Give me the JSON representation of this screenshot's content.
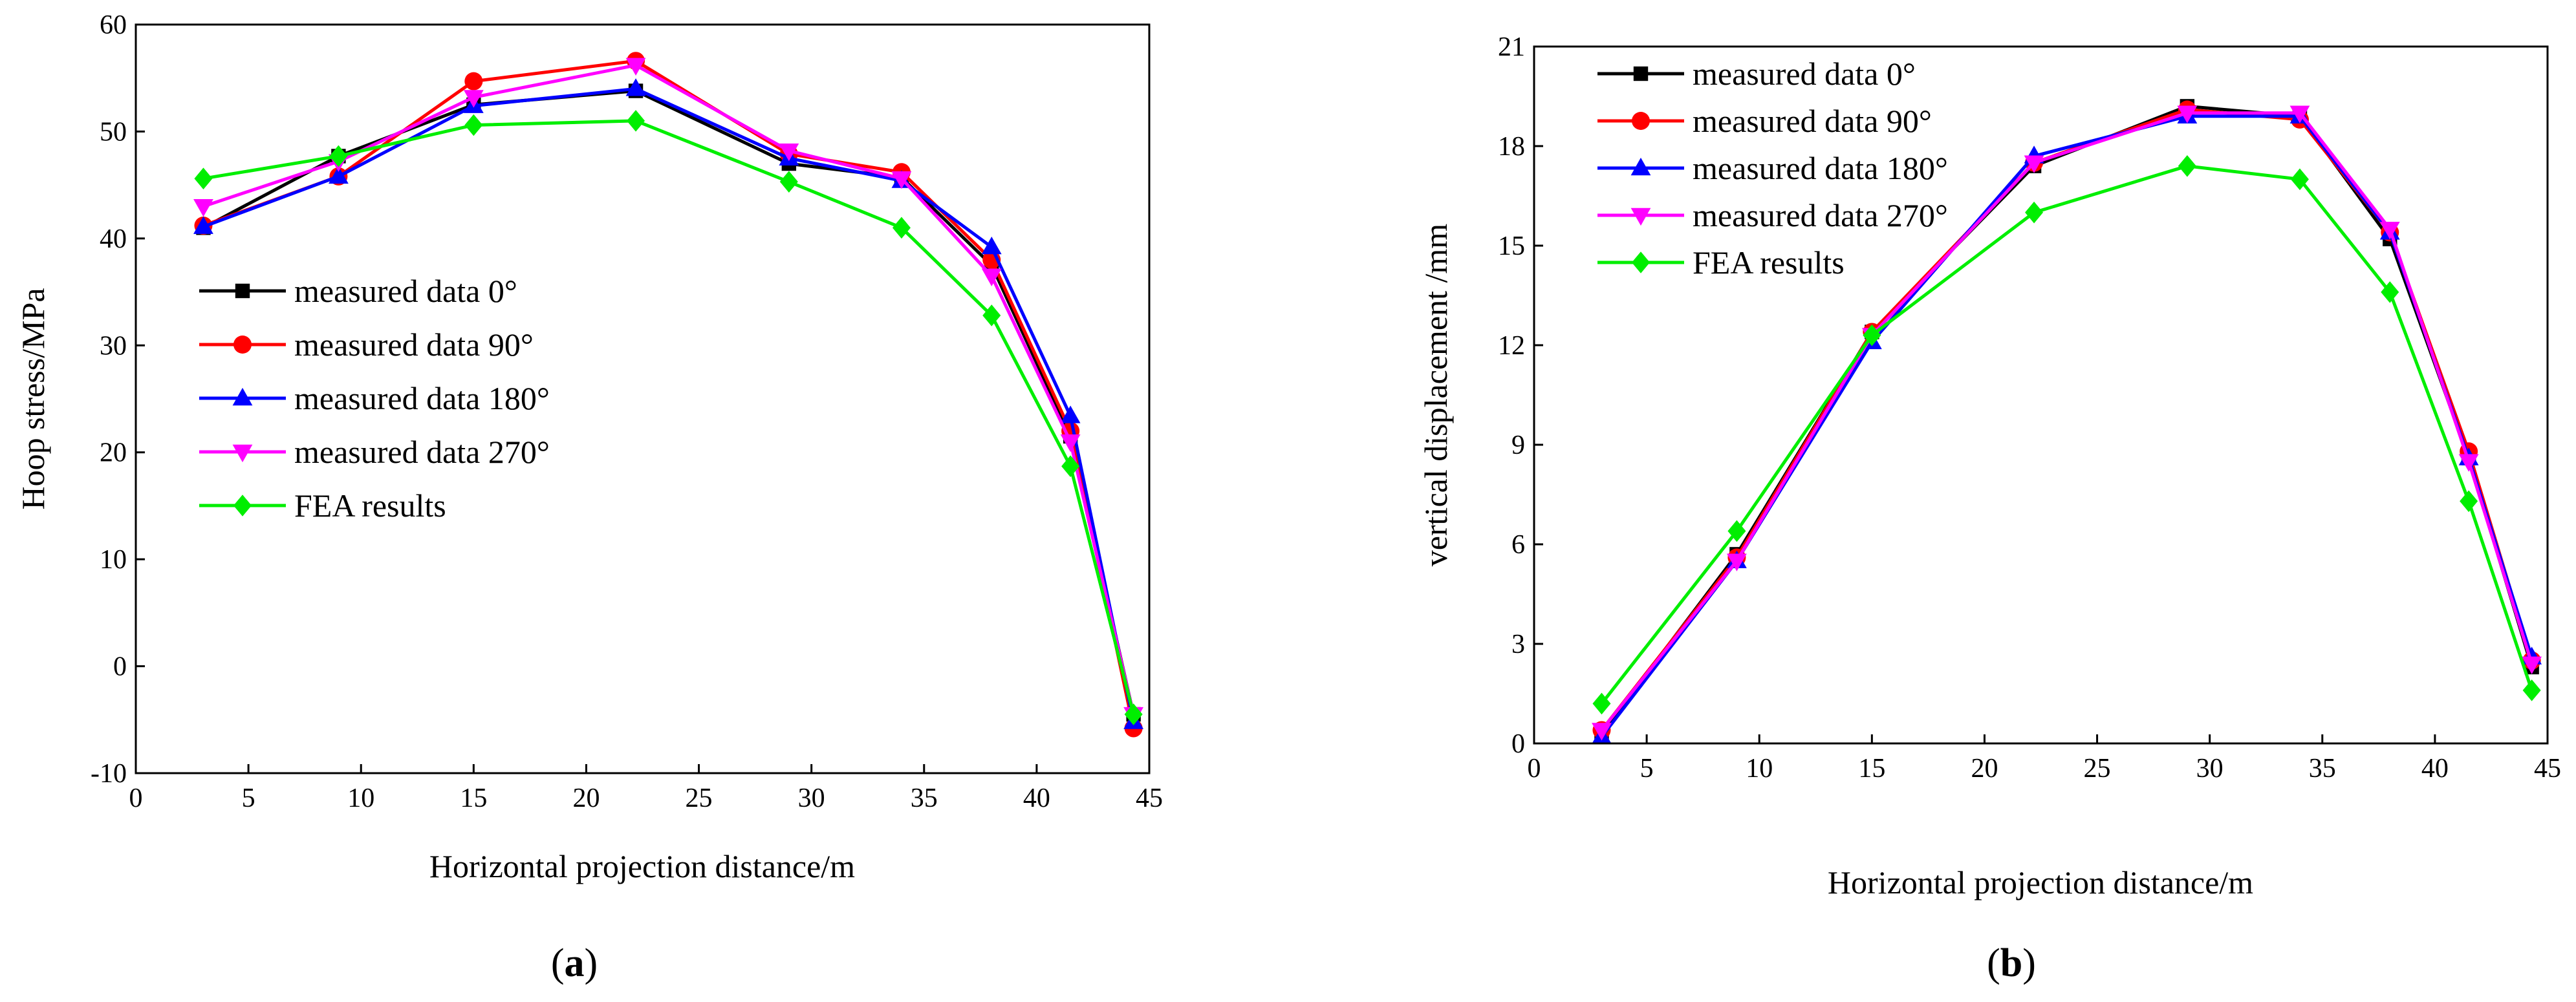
{
  "chart_data": [
    {
      "type": "line",
      "panel": "(a)",
      "panel_open": "(",
      "panel_letter": "a",
      "panel_close": ")",
      "xlabel": "Horizontal projection distance/m",
      "ylabel": "Hoop stress/MPa",
      "xlim": [
        0,
        45
      ],
      "ylim": [
        -10,
        60
      ],
      "xticks": [
        0,
        5,
        10,
        15,
        20,
        25,
        30,
        35,
        40,
        45
      ],
      "yticks": [
        -10,
        0,
        10,
        20,
        30,
        40,
        50,
        60
      ],
      "grid": false,
      "legend_position": "center-left",
      "series": [
        {
          "name": "measured data 0°",
          "color": "#000000",
          "marker": "square",
          "x": [
            3,
            9,
            15,
            22.2,
            29,
            34,
            38,
            41.5,
            44.3
          ],
          "y": [
            41,
            47.7,
            52.5,
            53.8,
            47,
            45.7,
            37.5,
            21.5,
            -4.5
          ]
        },
        {
          "name": "measured data 90°",
          "color": "#ff0000",
          "marker": "circle",
          "x": [
            3,
            9,
            15,
            22.2,
            29,
            34,
            38,
            41.5,
            44.3
          ],
          "y": [
            41.2,
            45.8,
            54.7,
            56.6,
            47.9,
            46.2,
            38,
            22,
            -5.8
          ]
        },
        {
          "name": "measured data 180°",
          "color": "#0000ff",
          "marker": "triangle-up",
          "x": [
            3,
            9,
            15,
            22.2,
            29,
            34,
            38,
            41.5,
            44.3
          ],
          "y": [
            41.1,
            45.8,
            52.4,
            54,
            47.5,
            45.4,
            39.2,
            23.4,
            -5.2
          ]
        },
        {
          "name": "measured data 270°",
          "color": "#ff00ff",
          "marker": "triangle-down",
          "x": [
            3,
            9,
            15,
            22.2,
            29,
            34,
            38,
            41.5,
            44.3
          ],
          "y": [
            43,
            47.2,
            53.2,
            56.2,
            48.2,
            45.6,
            36.5,
            21,
            -4.5
          ]
        },
        {
          "name": "FEA results",
          "color": "#00ee00",
          "marker": "diamond",
          "x": [
            3,
            9,
            15,
            22.2,
            29,
            34,
            38,
            41.5,
            44.3
          ],
          "y": [
            45.6,
            47.7,
            50.6,
            51,
            45.3,
            41,
            32.8,
            18.7,
            -4.5
          ]
        }
      ]
    },
    {
      "type": "line",
      "panel": "(b)",
      "panel_open": "(",
      "panel_letter": "b",
      "panel_close": ")",
      "xlabel": "Horizontal projection distance/m",
      "ylabel": "vertical displacement /mm",
      "xlim": [
        0,
        45
      ],
      "ylim": [
        0,
        21
      ],
      "xticks": [
        0,
        5,
        10,
        15,
        20,
        25,
        30,
        35,
        40,
        45
      ],
      "yticks": [
        0,
        3,
        6,
        9,
        12,
        15,
        18,
        21
      ],
      "grid": false,
      "legend_position": "top-left",
      "series": [
        {
          "name": "measured data 0°",
          "color": "#000000",
          "marker": "square",
          "x": [
            3,
            9,
            15,
            22.2,
            29,
            34,
            38,
            41.5,
            44.3
          ],
          "y": [
            0.3,
            5.7,
            12.4,
            17.4,
            19.2,
            18.9,
            15.2,
            8.6,
            2.3
          ]
        },
        {
          "name": "measured data 90°",
          "color": "#ff0000",
          "marker": "circle",
          "x": [
            3,
            9,
            15,
            22.2,
            29,
            34,
            38,
            41.5,
            44.3
          ],
          "y": [
            0.4,
            5.6,
            12.4,
            17.5,
            19.1,
            18.8,
            15.4,
            8.8,
            2.5
          ]
        },
        {
          "name": "measured data 180°",
          "color": "#0000ff",
          "marker": "triangle-up",
          "x": [
            3,
            9,
            15,
            22.2,
            29,
            34,
            38,
            41.5,
            44.3
          ],
          "y": [
            0.2,
            5.5,
            12.1,
            17.7,
            18.9,
            18.9,
            15.4,
            8.6,
            2.6
          ]
        },
        {
          "name": "measured data 270°",
          "color": "#ff00ff",
          "marker": "triangle-down",
          "x": [
            3,
            9,
            15,
            22.2,
            29,
            34,
            38,
            41.5,
            44.3
          ],
          "y": [
            0.4,
            5.5,
            12.3,
            17.5,
            19.0,
            19.0,
            15.5,
            8.5,
            2.4
          ]
        },
        {
          "name": "FEA results",
          "color": "#00ee00",
          "marker": "diamond",
          "x": [
            3,
            9,
            15,
            22.2,
            29,
            34,
            38,
            41.5,
            44.3
          ],
          "y": [
            1.2,
            6.4,
            12.3,
            16,
            17.4,
            17,
            13.6,
            7.3,
            1.6
          ]
        }
      ]
    }
  ]
}
